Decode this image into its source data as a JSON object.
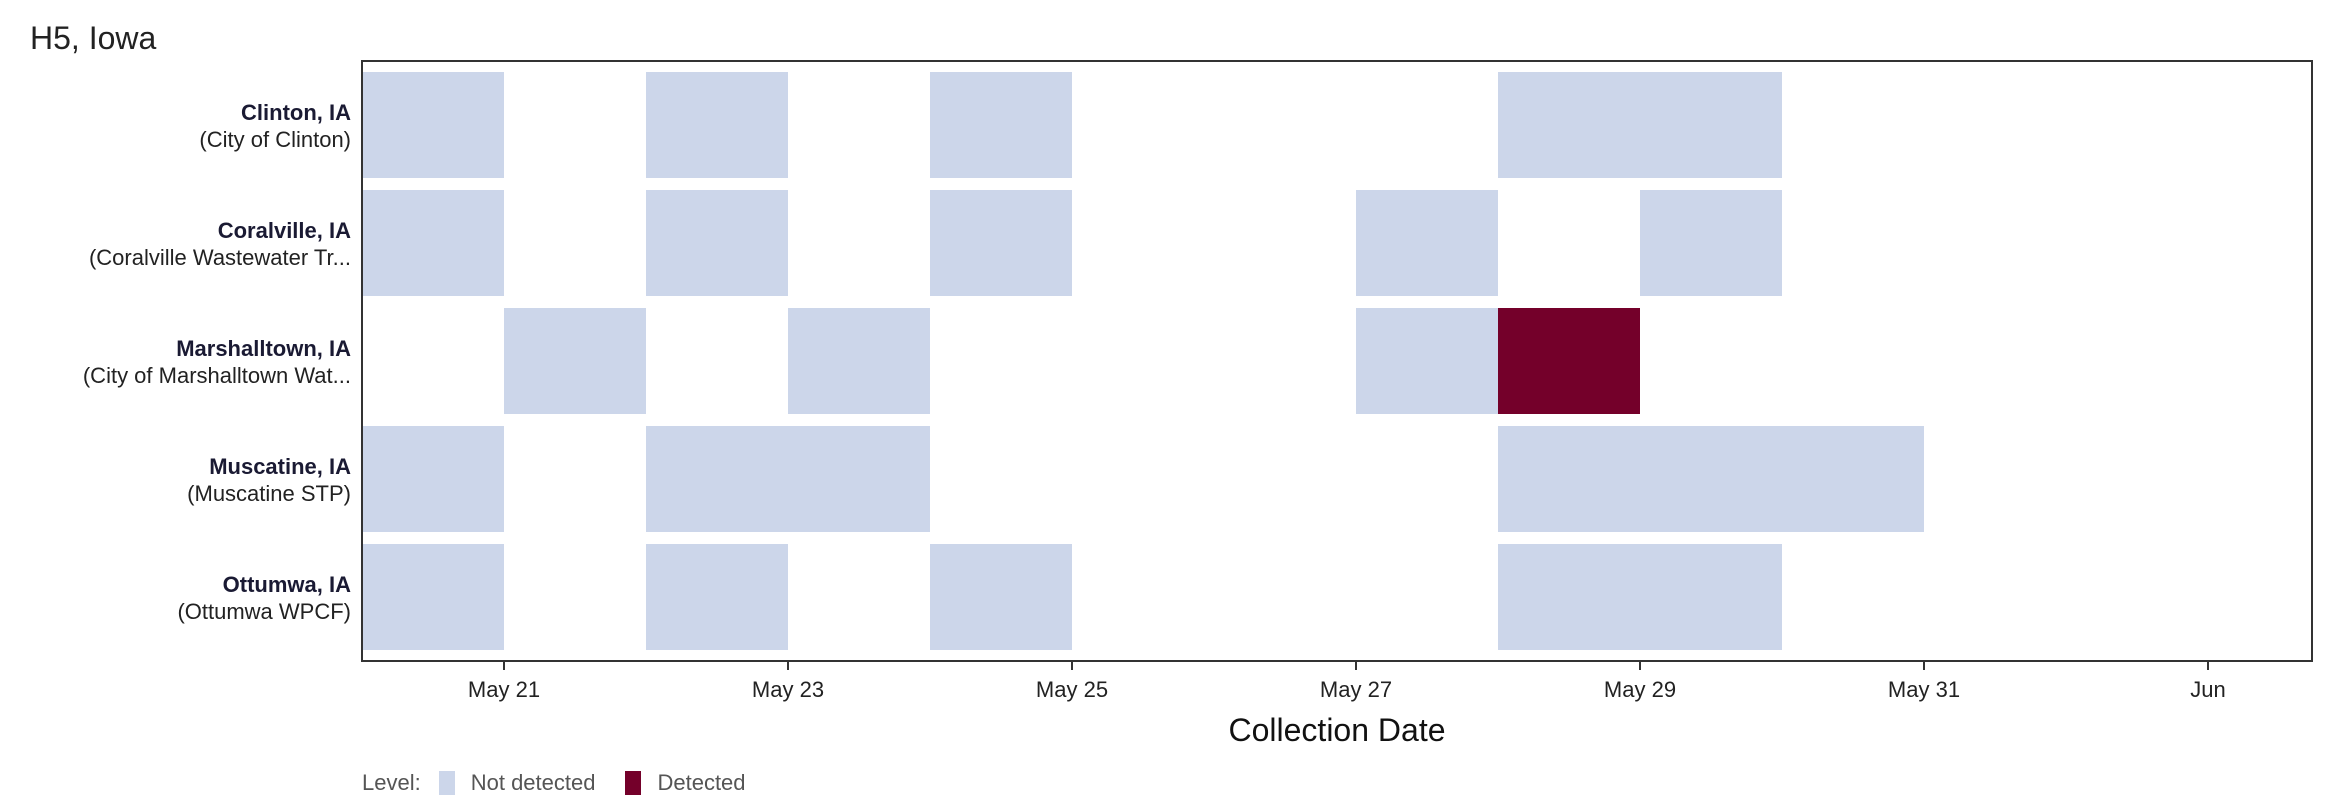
{
  "chart_data": {
    "type": "heatmap",
    "title": "H5, Iowa",
    "xlabel": "Collection Date",
    "ylabel": "",
    "x_ticks": [
      "May 21",
      "May 23",
      "May 25",
      "May 27",
      "May 29",
      "May 31",
      "Jun"
    ],
    "legend": {
      "title": "Level:",
      "placement": "bottom-left",
      "items": [
        {
          "label": "Not detected",
          "color": "#ccd6ea"
        },
        {
          "label": "Detected",
          "color": "#74002a"
        }
      ]
    },
    "sites": [
      {
        "name": "Clinton, IA",
        "facility": "(City of Clinton)",
        "samples": [
          {
            "date": "2024-05-20",
            "level": "Not detected"
          },
          {
            "date": "2024-05-22",
            "level": "Not detected"
          },
          {
            "date": "2024-05-24",
            "level": "Not detected"
          },
          {
            "date": "2024-05-28",
            "level": "Not detected"
          },
          {
            "date": "2024-05-29",
            "level": "Not detected"
          }
        ]
      },
      {
        "name": "Coralville, IA",
        "facility": "(Coralville Wastewater Tr...",
        "samples": [
          {
            "date": "2024-05-20",
            "level": "Not detected"
          },
          {
            "date": "2024-05-22",
            "level": "Not detected"
          },
          {
            "date": "2024-05-24",
            "level": "Not detected"
          },
          {
            "date": "2024-05-27",
            "level": "Not detected"
          },
          {
            "date": "2024-05-29",
            "level": "Not detected"
          }
        ]
      },
      {
        "name": "Marshalltown, IA",
        "facility": "(City of Marshalltown Wat...",
        "samples": [
          {
            "date": "2024-05-21",
            "level": "Not detected"
          },
          {
            "date": "2024-05-23",
            "level": "Not detected"
          },
          {
            "date": "2024-05-27",
            "level": "Not detected"
          },
          {
            "date": "2024-05-28",
            "level": "Detected"
          }
        ]
      },
      {
        "name": "Muscatine, IA",
        "facility": "(Muscatine STP)",
        "samples": [
          {
            "date": "2024-05-20",
            "level": "Not detected"
          },
          {
            "date": "2024-05-22",
            "level": "Not detected"
          },
          {
            "date": "2024-05-23",
            "level": "Not detected"
          },
          {
            "date": "2024-05-28",
            "level": "Not detected"
          },
          {
            "date": "2024-05-29",
            "level": "Not detected"
          },
          {
            "date": "2024-05-30",
            "level": "Not detected"
          }
        ]
      },
      {
        "name": "Ottumwa, IA",
        "facility": "(Ottumwa WPCF)",
        "samples": [
          {
            "date": "2024-05-20",
            "level": "Not detected"
          },
          {
            "date": "2024-05-22",
            "level": "Not detected"
          },
          {
            "date": "2024-05-24",
            "level": "Not detected"
          },
          {
            "date": "2024-05-28",
            "level": "Not detected"
          },
          {
            "date": "2024-05-29",
            "level": "Not detected"
          }
        ]
      }
    ]
  }
}
